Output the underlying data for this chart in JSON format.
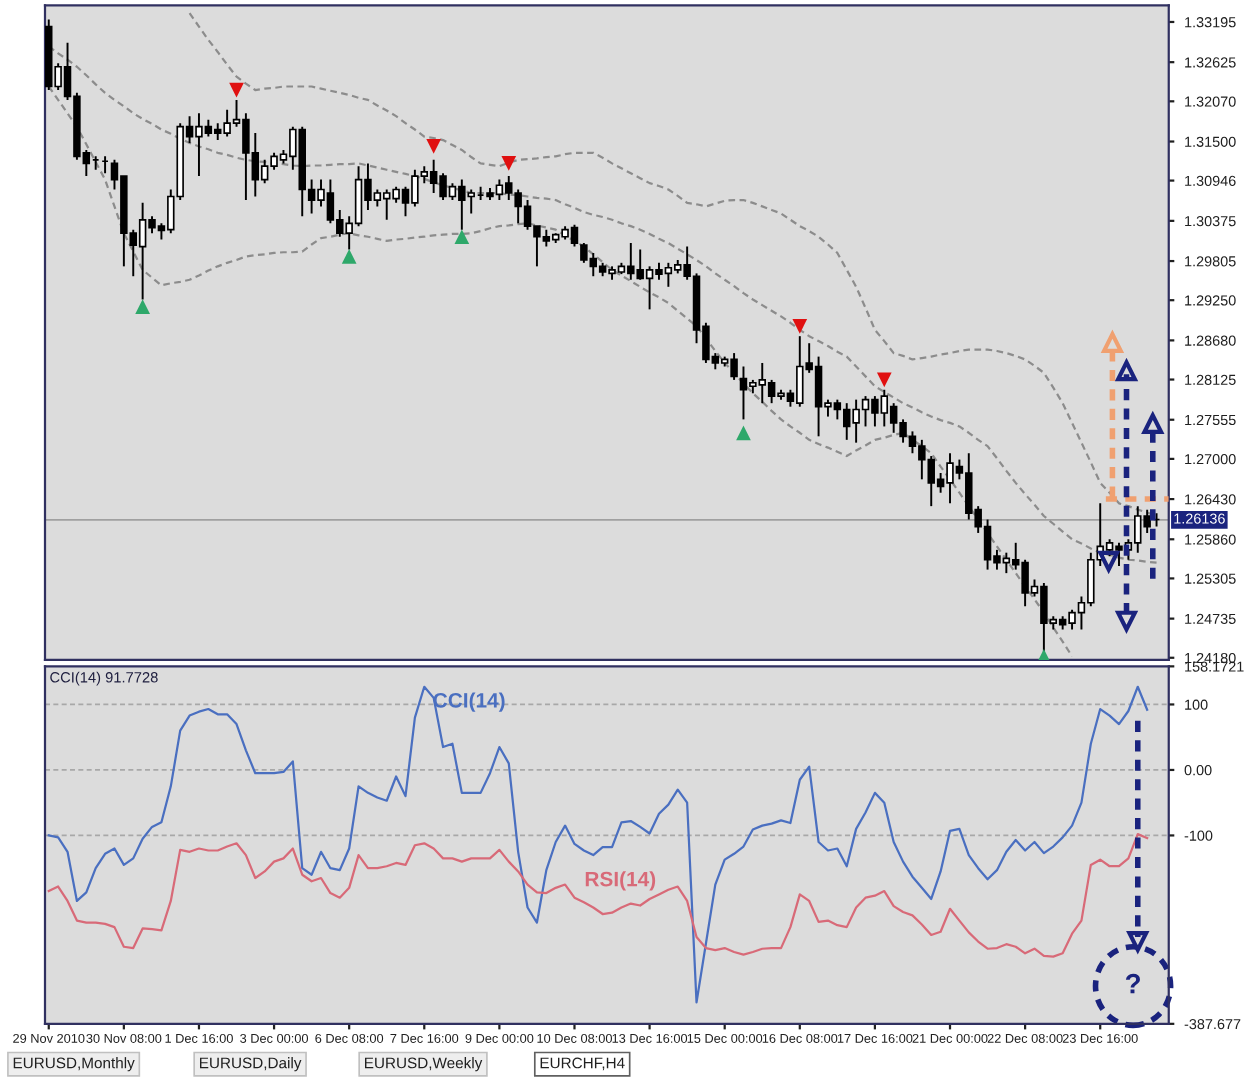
{
  "chart_data": [
    {
      "type": "candlestick",
      "tick_labels": "y",
      "categories": [
        null,
        null,
        null,
        null,
        null,
        null,
        null,
        null,
        null,
        null,
        null,
        null,
        null,
        null,
        null,
        null,
        null,
        null,
        null,
        null,
        null,
        null,
        null,
        null,
        null,
        null,
        null,
        null,
        null,
        null,
        null,
        null,
        null,
        null,
        null,
        null,
        null,
        null,
        null,
        null,
        null,
        null,
        null,
        null,
        null,
        null,
        null,
        null,
        null,
        null,
        null,
        null,
        null,
        null,
        null,
        null,
        null,
        null,
        null,
        null,
        null,
        null,
        null,
        null,
        null,
        null,
        null,
        null,
        null,
        null,
        null,
        null,
        null,
        null,
        null,
        null,
        null,
        null,
        null,
        null,
        null,
        null,
        null,
        null,
        null,
        null,
        null,
        null,
        null,
        null,
        null,
        null,
        null,
        null,
        null,
        null,
        null,
        null,
        null,
        null,
        null,
        null,
        null,
        null,
        null,
        null,
        null,
        null,
        null,
        null,
        null,
        null,
        null,
        null,
        null,
        null,
        null,
        null,
        null
      ],
      "ohlc": [
        [
          1.3313,
          1.3323,
          1.3223,
          1.3228
        ],
        [
          1.3228,
          1.3261,
          1.3223,
          1.3256
        ],
        [
          1.3256,
          1.329,
          1.3209,
          1.3214
        ],
        [
          1.3214,
          1.3219,
          1.3124,
          1.3129
        ],
        [
          1.3134,
          1.3138,
          1.3101,
          1.3119
        ],
        [
          1.3124,
          1.3129,
          1.311,
          1.3124
        ],
        [
          1.3122,
          1.3129,
          1.3105,
          1.3122
        ],
        [
          1.3119,
          1.3124,
          1.3082,
          1.3096
        ],
        [
          1.3101,
          1.3101,
          1.2973,
          1.302
        ],
        [
          1.302,
          1.3025,
          1.2959,
          1.3003
        ],
        [
          1.3001,
          1.3063,
          1.2926,
          1.3039
        ],
        [
          1.3039,
          1.3044,
          1.302,
          1.3028
        ],
        [
          1.303,
          1.3034,
          1.3011,
          1.3024
        ],
        [
          1.3025,
          1.3082,
          1.302,
          1.3072
        ],
        [
          1.3072,
          1.3176,
          1.3067,
          1.3171
        ],
        [
          1.3171,
          1.3186,
          1.3148,
          1.3157
        ],
        [
          1.3157,
          1.319,
          1.3101,
          1.3171
        ],
        [
          1.3171,
          1.3181,
          1.3157,
          1.3162
        ],
        [
          1.3167,
          1.3176,
          1.3152,
          1.3162
        ],
        [
          1.3162,
          1.3195,
          1.3157,
          1.3176
        ],
        [
          1.3176,
          1.3209,
          1.3171,
          1.3181
        ],
        [
          1.3181,
          1.319,
          1.3067,
          1.3134
        ],
        [
          1.3134,
          1.3162,
          1.3072,
          1.3096
        ],
        [
          1.3096,
          1.3124,
          1.3091,
          1.3115
        ],
        [
          1.3115,
          1.3134,
          1.311,
          1.3129
        ],
        [
          1.3124,
          1.3138,
          1.3119,
          1.3132
        ],
        [
          1.3129,
          1.3171,
          1.311,
          1.3167
        ],
        [
          1.3167,
          1.3171,
          1.3044,
          1.3082
        ],
        [
          1.3082,
          1.3096,
          1.3048,
          1.3067
        ],
        [
          1.3067,
          1.3096,
          1.3058,
          1.3082
        ],
        [
          1.3077,
          1.3096,
          1.3034,
          1.3039
        ],
        [
          1.3039,
          1.3053,
          1.3015,
          1.302
        ],
        [
          1.302,
          1.3044,
          1.2997,
          1.3034
        ],
        [
          1.3034,
          1.3115,
          1.303,
          1.3096
        ],
        [
          1.3096,
          1.3119,
          1.3053,
          1.3067
        ],
        [
          1.3067,
          1.3082,
          1.3058,
          1.3077
        ],
        [
          1.3069,
          1.3082,
          1.3039,
          1.3077
        ],
        [
          1.3069,
          1.3086,
          1.3063,
          1.3082
        ],
        [
          1.3082,
          1.3086,
          1.3044,
          1.3063
        ],
        [
          1.3063,
          1.311,
          1.3058,
          1.3101
        ],
        [
          1.3101,
          1.3115,
          1.3091,
          1.3107
        ],
        [
          1.3107,
          1.3124,
          1.3077,
          1.3091
        ],
        [
          1.3101,
          1.3105,
          1.3067,
          1.3072
        ],
        [
          1.3072,
          1.3091,
          1.3067,
          1.3086
        ],
        [
          1.3086,
          1.3096,
          1.3025,
          1.3067
        ],
        [
          1.3072,
          1.3082,
          1.3048,
          1.3077
        ],
        [
          1.3074,
          1.3086,
          1.3067,
          1.3074
        ],
        [
          1.3077,
          1.3084,
          1.3067,
          1.3072
        ],
        [
          1.3075,
          1.3096,
          1.3067,
          1.3088
        ],
        [
          1.3091,
          1.3101,
          1.3067,
          1.3077
        ],
        [
          1.3077,
          1.3082,
          1.3034,
          1.3058
        ],
        [
          1.3058,
          1.3067,
          1.3025,
          1.303
        ],
        [
          1.303,
          1.303,
          1.2973,
          1.3015
        ],
        [
          1.3015,
          1.3025,
          1.3001,
          1.3009
        ],
        [
          1.3011,
          1.302,
          1.3006,
          1.3018
        ],
        [
          1.3015,
          1.303,
          1.3011,
          1.3025
        ],
        [
          1.3028,
          1.3032,
          1.3001,
          1.3006
        ],
        [
          1.3003,
          1.3006,
          1.2978,
          1.2982
        ],
        [
          1.2984,
          1.2992,
          1.2959,
          1.2973
        ],
        [
          1.2973,
          1.2978,
          1.2959,
          1.2965
        ],
        [
          1.2963,
          1.2973,
          1.2954,
          1.2968
        ],
        [
          1.2965,
          1.2978,
          1.2962,
          1.2973
        ],
        [
          1.2973,
          1.3006,
          1.2954,
          1.2963
        ],
        [
          1.2968,
          1.2997,
          1.2954,
          1.2956
        ],
        [
          1.2956,
          1.2973,
          1.2912,
          1.2968
        ],
        [
          1.2968,
          1.2978,
          1.2954,
          1.2962
        ],
        [
          1.2963,
          1.2978,
          1.2944,
          1.2971
        ],
        [
          1.2968,
          1.2982,
          1.2963,
          1.2975
        ],
        [
          1.2975,
          1.3001,
          1.2954,
          1.2959
        ],
        [
          1.2959,
          1.2963,
          1.2864,
          1.2883
        ],
        [
          1.2888,
          1.2893,
          1.2836,
          1.2841
        ],
        [
          1.2845,
          1.285,
          1.2827,
          1.2836
        ],
        [
          1.2836,
          1.2845,
          1.2831,
          1.2841
        ],
        [
          1.2841,
          1.285,
          1.2812,
          1.2817
        ],
        [
          1.2814,
          1.2831,
          1.2756,
          1.2798
        ],
        [
          1.2803,
          1.2812,
          1.2793,
          1.2808
        ],
        [
          1.2805,
          1.2836,
          1.2779,
          1.2812
        ],
        [
          1.2808,
          1.2812,
          1.2779,
          1.2789
        ],
        [
          1.2789,
          1.2798,
          1.2784,
          1.2793
        ],
        [
          1.2793,
          1.2798,
          1.2774,
          1.2782
        ],
        [
          1.2779,
          1.2874,
          1.2774,
          1.2831
        ],
        [
          1.2836,
          1.2864,
          1.2822,
          1.2827
        ],
        [
          1.2831,
          1.2845,
          1.2732,
          1.2774
        ],
        [
          1.2774,
          1.2784,
          1.276,
          1.2779
        ],
        [
          1.2779,
          1.2784,
          1.2756,
          1.277
        ],
        [
          1.277,
          1.2779,
          1.2727,
          1.2746
        ],
        [
          1.2751,
          1.2784,
          1.2723,
          1.277
        ],
        [
          1.277,
          1.2789,
          1.2746,
          1.2784
        ],
        [
          1.2784,
          1.2789,
          1.2746,
          1.2765
        ],
        [
          1.2765,
          1.2798,
          1.2746,
          1.2789
        ],
        [
          1.2774,
          1.2779,
          1.2737,
          1.2751
        ],
        [
          1.2751,
          1.2756,
          1.2723,
          1.2732
        ],
        [
          1.2732,
          1.2739,
          1.2708,
          1.2718
        ],
        [
          1.2718,
          1.2727,
          1.2671,
          1.2699
        ],
        [
          1.2699,
          1.2704,
          1.2633,
          1.2666
        ],
        [
          1.2671,
          1.268,
          1.2652,
          1.2661
        ],
        [
          1.2666,
          1.2708,
          1.2637,
          1.2694
        ],
        [
          1.2689,
          1.2699,
          1.2671,
          1.268
        ],
        [
          1.268,
          1.2708,
          1.2614,
          1.2623
        ],
        [
          1.2628,
          1.2633,
          1.2595,
          1.2604
        ],
        [
          1.2604,
          1.2614,
          1.2543,
          1.2557
        ],
        [
          1.2562,
          1.2571,
          1.2543,
          1.2553
        ],
        [
          1.2553,
          1.2567,
          1.2538,
          1.2559
        ],
        [
          1.2557,
          1.2581,
          1.2543,
          1.255
        ],
        [
          1.2553,
          1.2557,
          1.2491,
          1.251
        ],
        [
          1.251,
          1.2529,
          1.2505,
          1.2519
        ],
        [
          1.2519,
          1.2524,
          1.242,
          1.2467
        ],
        [
          1.2467,
          1.2477,
          1.2458,
          1.2472
        ],
        [
          1.2472,
          1.2477,
          1.2458,
          1.2465
        ],
        [
          1.2467,
          1.2486,
          1.2458,
          1.2482
        ],
        [
          1.2482,
          1.2505,
          1.2458,
          1.2496
        ],
        [
          1.2496,
          1.2567,
          1.2491,
          1.2557
        ],
        [
          1.2557,
          1.2637,
          1.2548,
          1.2576
        ],
        [
          1.2571,
          1.2586,
          1.2562,
          1.2581
        ],
        [
          1.2576,
          1.2581,
          1.2548,
          1.2571
        ],
        [
          1.2571,
          1.2586,
          1.2557,
          1.2581
        ],
        [
          1.2581,
          1.2633,
          1.2567,
          1.2619
        ],
        [
          1.2619,
          1.2628,
          1.2595,
          1.2604
        ],
        [
          1.2614,
          1.2623,
          1.2604,
          1.2614
        ]
      ],
      "series": [
        {
          "type": "line",
          "color": "#8c8c8c",
          "line_style": "dashed",
          "values": [
            null,
            null,
            null,
            null,
            null,
            null,
            null,
            null,
            null,
            null,
            null,
            null,
            null,
            null,
            null,
            1.3332,
            1.3313,
            1.3294,
            1.3277,
            1.3259,
            1.3242,
            1.3232,
            1.3223,
            1.3225,
            1.3226,
            1.3228,
            1.3228,
            1.3228,
            1.3228,
            1.3225,
            1.3222,
            1.3219,
            1.3216,
            1.3212,
            1.3209,
            1.3201,
            1.3194,
            1.3186,
            1.3176,
            1.3167,
            1.3157,
            1.3155,
            1.3152,
            1.3145,
            1.3138,
            1.3128,
            1.3119,
            1.3117,
            1.3115,
            1.312,
            1.3124,
            1.3125,
            1.3126,
            1.3128,
            1.3129,
            1.3132,
            1.3134,
            1.3134,
            1.3134,
            1.3127,
            1.3119,
            1.3112,
            1.3105,
            1.3098,
            1.3091,
            1.3087,
            1.3082,
            1.3073,
            1.3063,
            1.3061,
            1.3058,
            1.3062,
            1.3066,
            1.3067,
            1.3067,
            1.3063,
            1.3058,
            1.3053,
            1.3048,
            1.3039,
            1.303,
            1.3023,
            1.3015,
            1.3004,
            1.2992,
            1.2968,
            1.2944,
            1.2914,
            1.2883,
            1.2867,
            1.285,
            1.2846,
            1.2841,
            1.2843,
            1.2845,
            1.2848,
            1.285,
            1.2853,
            1.2855,
            1.2855,
            1.2855,
            1.2853,
            1.285,
            1.2846,
            1.2841,
            1.2832,
            1.2822,
            1.2801,
            1.2779,
            1.2751,
            1.2723,
            1.2695,
            1.2666,
            1.2652,
            1.2637,
            1.2633,
            1.2628,
            1.2624,
            1.2619
          ]
        },
        {
          "type": "line",
          "color": "#8c8c8c",
          "line_style": "dashed",
          "values": [
            1.3285,
            1.3275,
            1.3266,
            1.3256,
            1.3244,
            1.3231,
            1.3219,
            1.3209,
            1.32,
            1.319,
            1.3182,
            1.3175,
            1.3167,
            1.3161,
            1.3154,
            1.3148,
            1.3143,
            1.3139,
            1.3134,
            1.3131,
            1.3127,
            1.3124,
            1.3122,
            1.3121,
            1.3119,
            1.3118,
            1.3116,
            1.3115,
            1.3116,
            1.3116,
            1.3117,
            1.3118,
            1.3118,
            1.3119,
            1.3116,
            1.3113,
            1.311,
            1.3107,
            1.3104,
            1.3101,
            1.3097,
            1.3092,
            1.3088,
            1.3084,
            1.3081,
            1.3077,
            1.3077,
            1.3077,
            1.3077,
            1.3075,
            1.3074,
            1.3072,
            1.307,
            1.3069,
            1.3067,
            1.3061,
            1.3056,
            1.305,
            1.3046,
            1.3043,
            1.3039,
            1.3034,
            1.303,
            1.3025,
            1.3019,
            1.3012,
            1.3006,
            1.2998,
            1.299,
            1.2982,
            1.2973,
            1.2963,
            1.2954,
            1.2945,
            1.2935,
            1.2926,
            1.2918,
            1.291,
            1.2902,
            1.2893,
            1.2883,
            1.2874,
            1.2867,
            1.286,
            1.2852,
            1.2845,
            1.2831,
            1.2817,
            1.2803,
            1.2795,
            1.2787,
            1.2779,
            1.2773,
            1.2766,
            1.276,
            1.2755,
            1.2751,
            1.2746,
            1.2737,
            1.2727,
            1.2718,
            1.2701,
            1.2683,
            1.2666,
            1.265,
            1.2635,
            1.2619,
            1.2608,
            1.2597,
            1.2586,
            1.258,
            1.2573,
            1.2567,
            1.2564,
            1.256,
            1.2557,
            1.2556,
            1.2554,
            1.2553
          ]
        },
        {
          "type": "line",
          "color": "#8c8c8c",
          "line_style": "dashed",
          "values": [
            1.3228,
            1.3209,
            1.319,
            1.3171,
            1.3146,
            1.3121,
            1.3096,
            1.3058,
            1.302,
            1.2994,
            1.2968,
            1.2957,
            1.2946,
            1.2949,
            1.2951,
            1.2954,
            1.296,
            1.2967,
            1.2973,
            1.2978,
            1.2982,
            1.2987,
            1.2989,
            1.299,
            1.2992,
            1.2993,
            1.2993,
            1.2994,
            1.3004,
            1.3013,
            1.3015,
            1.3018,
            1.302,
            1.3017,
            1.3015,
            1.3012,
            1.3009,
            1.3011,
            1.3012,
            1.3014,
            1.3015,
            1.3017,
            1.3018,
            1.3019,
            1.3019,
            1.302,
            1.3023,
            1.3027,
            1.303,
            1.3031,
            1.3033,
            1.3034,
            1.3031,
            1.3028,
            1.3025,
            1.3017,
            1.3009,
            1.3001,
            1.299,
            1.2979,
            1.2968,
            1.296,
            1.2952,
            1.2944,
            1.2936,
            1.2929,
            1.2921,
            1.291,
            1.2899,
            1.2888,
            1.2871,
            1.2853,
            1.2836,
            1.2822,
            1.2807,
            1.2793,
            1.2781,
            1.2768,
            1.2756,
            1.2746,
            1.2737,
            1.2727,
            1.2721,
            1.2716,
            1.271,
            1.2704,
            1.2712,
            1.2719,
            1.2727,
            1.273,
            1.2734,
            1.2737,
            1.2727,
            1.2718,
            1.2708,
            1.2689,
            1.2671,
            1.2652,
            1.2633,
            1.2614,
            1.2595,
            1.2576,
            1.2557,
            1.2538,
            1.2519,
            1.2501,
            1.2482,
            1.2461,
            1.2441,
            1.242,
            null,
            null,
            null,
            null,
            null,
            null,
            null,
            null,
            null
          ]
        },
        {
          "type": "scatter",
          "color": "#e01010",
          "marker": "triangle_down",
          "values": [
            null,
            null,
            null,
            null,
            null,
            null,
            null,
            null,
            null,
            null,
            null,
            null,
            null,
            null,
            null,
            null,
            null,
            null,
            null,
            null,
            1.3223,
            null,
            null,
            null,
            null,
            null,
            null,
            null,
            null,
            null,
            null,
            null,
            null,
            null,
            null,
            null,
            null,
            null,
            null,
            null,
            null,
            1.3143,
            null,
            null,
            null,
            null,
            null,
            null,
            null,
            1.3119,
            null,
            null,
            null,
            null,
            null,
            null,
            null,
            null,
            null,
            null,
            null,
            null,
            null,
            null,
            null,
            null,
            null,
            null,
            null,
            null,
            null,
            null,
            null,
            null,
            null,
            null,
            null,
            null,
            null,
            null,
            1.2888,
            null,
            null,
            null,
            null,
            null,
            null,
            null,
            null,
            1.2812,
            null,
            null,
            null,
            null,
            null,
            null,
            null,
            null,
            null,
            null,
            null,
            null,
            null,
            null,
            null,
            null,
            null,
            null,
            null,
            null,
            null,
            null,
            null,
            null,
            null,
            null,
            null,
            null,
            null
          ]
        },
        {
          "type": "scatter",
          "color": "#2ea86a",
          "marker": "triangle",
          "values": [
            null,
            null,
            null,
            null,
            null,
            null,
            null,
            null,
            null,
            null,
            1.2916,
            null,
            null,
            null,
            null,
            null,
            null,
            null,
            null,
            null,
            null,
            null,
            null,
            null,
            null,
            null,
            null,
            null,
            null,
            null,
            null,
            null,
            1.2987,
            null,
            null,
            null,
            null,
            null,
            null,
            null,
            null,
            null,
            null,
            null,
            1.3015,
            null,
            null,
            null,
            null,
            null,
            null,
            null,
            null,
            null,
            null,
            null,
            null,
            null,
            null,
            null,
            null,
            null,
            null,
            null,
            null,
            null,
            null,
            null,
            null,
            null,
            null,
            null,
            null,
            null,
            1.2737,
            null,
            null,
            null,
            null,
            null,
            null,
            null,
            null,
            null,
            null,
            null,
            null,
            null,
            null,
            null,
            null,
            null,
            null,
            null,
            null,
            null,
            null,
            null,
            null,
            null,
            null,
            null,
            null,
            null,
            null,
            null,
            1.242,
            null,
            null,
            null,
            null,
            null,
            null,
            null,
            null,
            null,
            null,
            null,
            null
          ]
        }
      ],
      "ylim": [
        1.2415,
        1.3343
      ],
      "yticks": [
        {
          "value": 1.33195,
          "label": "1.33195"
        },
        {
          "value": 1.32625,
          "label": "1.32625"
        },
        {
          "value": 1.3207,
          "label": "1.32070"
        },
        {
          "value": 1.315,
          "label": "1.31500"
        },
        {
          "value": 1.30946,
          "label": "1.30946"
        },
        {
          "value": 1.30375,
          "label": "1.30375"
        },
        {
          "value": 1.29805,
          "label": "1.29805"
        },
        {
          "value": 1.2925,
          "label": "1.29250"
        },
        {
          "value": 1.2868,
          "label": "1.28680"
        },
        {
          "value": 1.28125,
          "label": "1.28125"
        },
        {
          "value": 1.27555,
          "label": "1.27555"
        },
        {
          "value": 1.27,
          "label": "1.27000"
        },
        {
          "value": 1.2643,
          "label": "1.26430"
        },
        {
          "value": 1.2586,
          "label": "1.25860"
        },
        {
          "value": 1.25305,
          "label": "1.25305"
        },
        {
          "value": 1.24735,
          "label": "1.24735"
        },
        {
          "value": 1.2418,
          "label": "1.24180"
        }
      ],
      "ref_lines": [
        {
          "axis": "y",
          "value": 1.26136,
          "label": "1.26136",
          "color": "#a0a0a0"
        }
      ]
    },
    {
      "type": "line",
      "title": "CCI(14) 91.7728",
      "categories": [
        "29 Nov 2010",
        null,
        null,
        null,
        null,
        null,
        null,
        null,
        "30 Nov 08:00",
        null,
        null,
        null,
        null,
        null,
        null,
        null,
        "1 Dec 16:00",
        null,
        null,
        null,
        null,
        null,
        null,
        null,
        "3 Dec 00:00",
        null,
        null,
        null,
        null,
        null,
        null,
        null,
        "6 Dec 08:00",
        null,
        null,
        null,
        null,
        null,
        null,
        null,
        "7 Dec 16:00",
        null,
        null,
        null,
        null,
        null,
        null,
        null,
        "9 Dec 00:00",
        null,
        null,
        null,
        null,
        null,
        null,
        null,
        "10 Dec 08:00",
        null,
        null,
        null,
        null,
        null,
        null,
        null,
        "13 Dec 16:00",
        null,
        null,
        null,
        null,
        null,
        null,
        null,
        "15 Dec 00:00",
        null,
        null,
        null,
        null,
        null,
        null,
        null,
        "16 Dec 08:00",
        null,
        null,
        null,
        null,
        null,
        null,
        null,
        "17 Dec 16:00",
        null,
        null,
        null,
        null,
        null,
        null,
        null,
        "21 Dec 00:00",
        null,
        null,
        null,
        null,
        null,
        null,
        null,
        "22 Dec 08:00",
        null,
        null,
        null,
        null,
        null,
        null,
        null,
        "23 Dec 16:00",
        null,
        null,
        null,
        null,
        null,
        null
      ],
      "series": [
        {
          "color": "#4a6fc0",
          "values": [
            -100,
            -103,
            -125,
            -200,
            -187,
            -150,
            -128,
            -120,
            -145,
            -135,
            -105,
            -87,
            -80,
            -25,
            60,
            83,
            89,
            93,
            85,
            85,
            70,
            30,
            -5,
            -5,
            -5,
            -3,
            13,
            -150,
            -160,
            -125,
            -150,
            -153,
            -120,
            -25,
            -35,
            -42,
            -47,
            -10,
            -40,
            80,
            127,
            110,
            35,
            40,
            -35,
            -35,
            -35,
            -5,
            35,
            10,
            -125,
            -210,
            -233,
            -153,
            -110,
            -85,
            -113,
            -123,
            -130,
            -118,
            -118,
            -80,
            -78,
            -87,
            -97,
            -67,
            -53,
            -30,
            -50,
            -355,
            -265,
            -175,
            -137,
            -128,
            -117,
            -91,
            -85,
            -82,
            -77,
            -81,
            -15,
            5,
            -110,
            -123,
            -120,
            -147,
            -90,
            -65,
            -35,
            -50,
            -110,
            -140,
            -163,
            -180,
            -197,
            -155,
            -93,
            -90,
            -130,
            -150,
            -167,
            -153,
            -125,
            -107,
            -123,
            -110,
            -127,
            -117,
            -103,
            -85,
            -50,
            40,
            93,
            83,
            70,
            90,
            127,
            92,
            null
          ]
        },
        {
          "color": "#d86a78",
          "values": [
            -185,
            -178,
            -200,
            -230,
            -233,
            -233,
            -235,
            -240,
            -270,
            -272,
            -242,
            -243,
            -245,
            -200,
            -122,
            -125,
            -120,
            -123,
            -123,
            -117,
            -112,
            -130,
            -165,
            -155,
            -140,
            -135,
            -120,
            -160,
            -170,
            -165,
            -188,
            -195,
            -180,
            -130,
            -150,
            -150,
            -147,
            -142,
            -145,
            -115,
            -112,
            -120,
            -135,
            -135,
            -140,
            -135,
            -135,
            -135,
            -122,
            -140,
            -155,
            -175,
            -187,
            -188,
            -180,
            -175,
            -195,
            -202,
            -210,
            -220,
            -218,
            -210,
            -204,
            -207,
            -197,
            -190,
            -183,
            -178,
            -200,
            -255,
            -272,
            -275,
            -272,
            -278,
            -282,
            -278,
            -273,
            -272,
            -272,
            -240,
            -190,
            -200,
            -232,
            -230,
            -237,
            -240,
            -210,
            -195,
            -192,
            -185,
            -208,
            -217,
            -222,
            -236,
            -252,
            -247,
            -212,
            -230,
            -248,
            -262,
            -273,
            -272,
            -266,
            -270,
            -280,
            -273,
            -284,
            -285,
            -280,
            -250,
            -230,
            -145,
            -137,
            -147,
            -147,
            -135,
            -98,
            -104,
            null
          ]
        }
      ],
      "annotations": [
        "CCI(14)",
        "RSI(14)",
        "?",
        "EURUSD,Monthly",
        "EURUSD,Daily",
        "EURUSD,Weekly",
        "EURCHF,H4"
      ],
      "ylim": [
        -387.677,
        158.1721
      ],
      "yticks": [
        {
          "value": 158.1721,
          "label": "158.1721"
        },
        100,
        {
          "value": 0,
          "label": "0.00"
        },
        -100,
        {
          "value": -387.677,
          "label": "-387.677"
        }
      ],
      "ref_lines": [
        {
          "axis": "y",
          "value": 100,
          "color": "#a8a8a8",
          "line_style": "dashed"
        },
        {
          "axis": "y",
          "value": 0,
          "color": "#a8a8a8",
          "line_style": "dashed"
        },
        {
          "axis": "y",
          "value": -100,
          "color": "#a8a8a8",
          "line_style": "dashed"
        }
      ]
    }
  ]
}
